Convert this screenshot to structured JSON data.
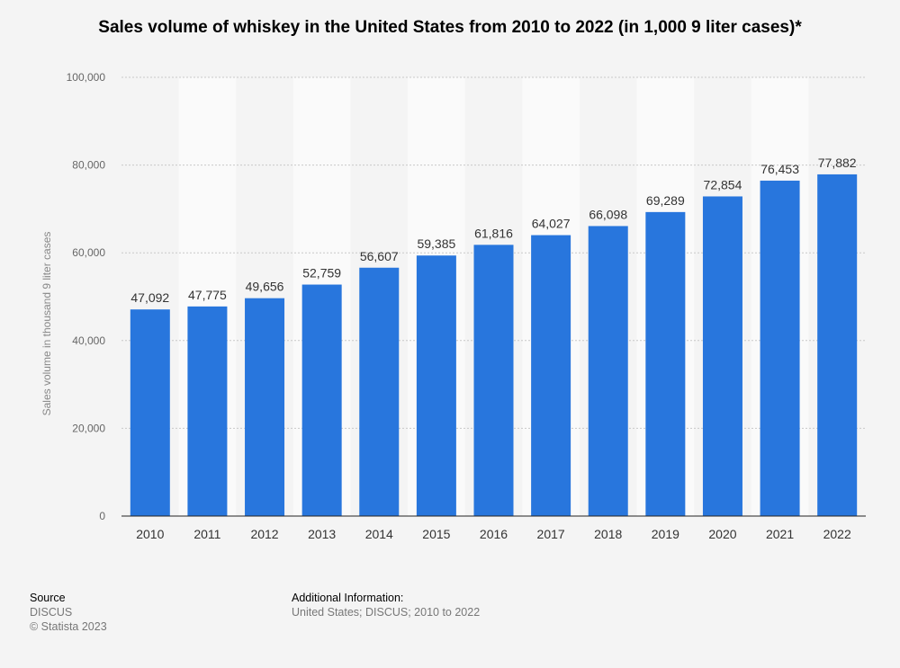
{
  "chart_data": {
    "type": "bar",
    "title": "Sales volume of whiskey in the United States from 2010 to 2022 (in 1,000 9 liter cases)*",
    "xlabel": "",
    "ylabel": "Sales volume in thousand 9 liter cases",
    "categories": [
      "2010",
      "2011",
      "2012",
      "2013",
      "2014",
      "2015",
      "2016",
      "2017",
      "2018",
      "2019",
      "2020",
      "2021",
      "2022"
    ],
    "values": [
      47092,
      47775,
      49656,
      52759,
      56607,
      59385,
      61816,
      64027,
      66098,
      69289,
      72854,
      76453,
      77882
    ],
    "value_labels": [
      "47,092",
      "47,775",
      "49,656",
      "52,759",
      "56,607",
      "59,385",
      "61,816",
      "64,027",
      "66,098",
      "69,289",
      "72,854",
      "76,453",
      "77,882"
    ],
    "ylim": [
      0,
      100000
    ],
    "yticks": [
      0,
      20000,
      40000,
      60000,
      80000,
      100000
    ],
    "ytick_labels": [
      "0",
      "20,000",
      "40,000",
      "60,000",
      "80,000",
      "100,000"
    ],
    "grid": true,
    "colors": {
      "bar": "#2876dd",
      "band": "#fafafa",
      "grid": "#c8c8c8",
      "axis": "#222222"
    }
  },
  "footer": {
    "source_heading": "Source",
    "source_lines": [
      "DISCUS",
      "© Statista 2023"
    ],
    "info_heading": "Additional Information:",
    "info_text": "United States; DISCUS; 2010 to 2022"
  }
}
